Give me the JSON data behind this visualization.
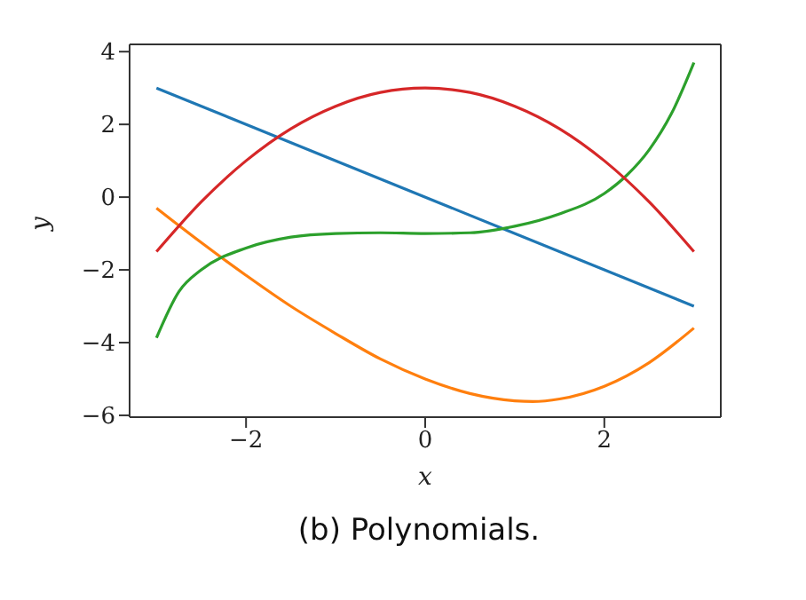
{
  "chart_data": {
    "type": "line",
    "xlabel": "x",
    "ylabel": "y",
    "annotations": [
      "(b) Polynomials."
    ],
    "xlim": [
      -3.3,
      3.3
    ],
    "ylim": [
      -6.05,
      4.2
    ],
    "xticks": [
      -2,
      0,
      2
    ],
    "yticks": [
      -6,
      -4,
      -2,
      0,
      2,
      4
    ],
    "marker": "none",
    "series": [
      {
        "color": "#1f77b4",
        "x": [
          -3,
          3
        ],
        "values": [
          3,
          -3
        ]
      },
      {
        "color": "#ff7f0e",
        "x": [
          -3,
          -2.5,
          -2,
          -1.5,
          -1,
          -0.5,
          0,
          0.5,
          1,
          1.2,
          1.5,
          2,
          2.5,
          3
        ],
        "values": [
          -0.3,
          -1.25,
          -2.15,
          -3.0,
          -3.75,
          -4.45,
          -5.0,
          -5.4,
          -5.6,
          -5.62,
          -5.55,
          -5.2,
          -4.55,
          -3.6
        ]
      },
      {
        "color": "#2ca02c",
        "x": [
          -3,
          -2.75,
          -2.5,
          -2,
          -1.5,
          -1,
          -0.5,
          0,
          0.5,
          1,
          1.5,
          2,
          2.25,
          2.5,
          2.75,
          3
        ],
        "values": [
          -3.87,
          -2.6,
          -2.0,
          -1.4,
          -1.1,
          -1.0,
          -0.98,
          -1.0,
          -0.98,
          -0.8,
          -0.46,
          0.1,
          0.6,
          1.3,
          2.3,
          3.7
        ]
      },
      {
        "color": "#d62728",
        "x": [
          -3,
          -2.5,
          -2,
          -1.5,
          -1,
          -0.5,
          0,
          0.5,
          1,
          1.5,
          2,
          2.5,
          3
        ],
        "values": [
          -1.5,
          -0.13,
          1,
          1.88,
          2.5,
          2.88,
          3,
          2.88,
          2.5,
          1.88,
          1,
          -0.13,
          -1.5
        ]
      }
    ]
  }
}
